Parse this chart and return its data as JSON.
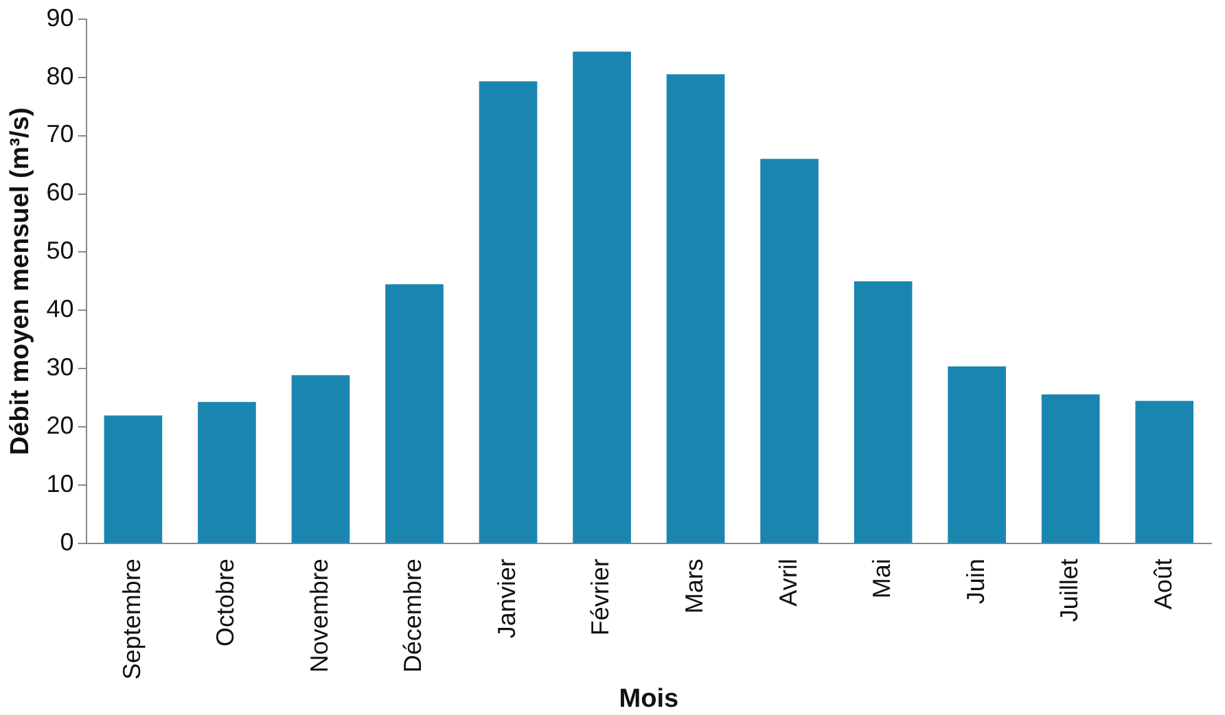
{
  "chart_data": {
    "type": "bar",
    "xlabel": "Mois",
    "ylabel": "Débit moyen mensuel (m³/s)",
    "categories": [
      "Septembre",
      "Octobre",
      "Novembre",
      "Décembre",
      "Janvier",
      "Février",
      "Mars",
      "Avril",
      "Mai",
      "Juin",
      "Juillet",
      "Août"
    ],
    "values": [
      22,
      24.3,
      28.9,
      44.5,
      79.3,
      84.4,
      80.5,
      66,
      45,
      30.4,
      25.6,
      24.5
    ],
    "color": "#1a86b0",
    "ylim": [
      0,
      90
    ],
    "yticks": [
      0,
      10,
      20,
      30,
      40,
      50,
      60,
      70,
      80,
      90
    ],
    "grid": false,
    "legend": false
  }
}
